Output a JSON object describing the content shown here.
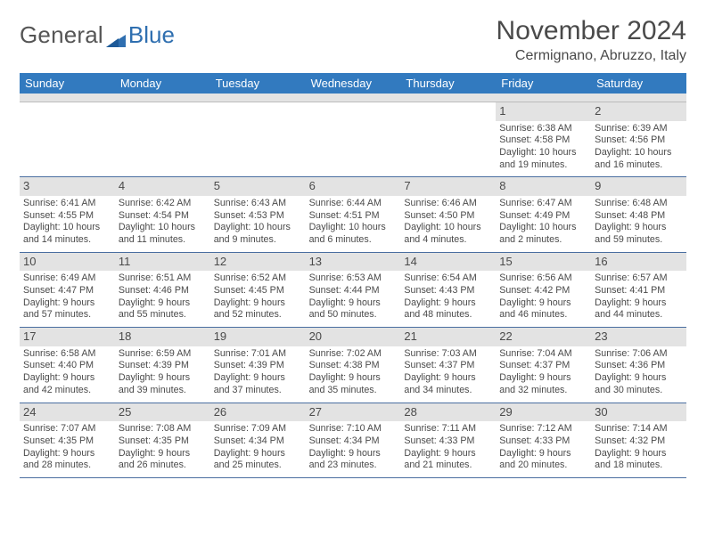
{
  "logo": {
    "general": "General",
    "blue": "Blue"
  },
  "title": "November 2024",
  "location": "Cermignano, Abruzzo, Italy",
  "colors": {
    "header_bg": "#327abf",
    "header_text": "#ffffff",
    "cell_border": "#4a6ea0",
    "daynum_bg": "#e3e3e3",
    "body_text": "#4a4a4a",
    "logo_blue": "#2f6fb0"
  },
  "daynames": [
    "Sunday",
    "Monday",
    "Tuesday",
    "Wednesday",
    "Thursday",
    "Friday",
    "Saturday"
  ],
  "weeks": [
    [
      null,
      null,
      null,
      null,
      null,
      {
        "n": "1",
        "sr": "6:38 AM",
        "ss": "4:58 PM",
        "dl": "10 hours and 19 minutes."
      },
      {
        "n": "2",
        "sr": "6:39 AM",
        "ss": "4:56 PM",
        "dl": "10 hours and 16 minutes."
      }
    ],
    [
      {
        "n": "3",
        "sr": "6:41 AM",
        "ss": "4:55 PM",
        "dl": "10 hours and 14 minutes."
      },
      {
        "n": "4",
        "sr": "6:42 AM",
        "ss": "4:54 PM",
        "dl": "10 hours and 11 minutes."
      },
      {
        "n": "5",
        "sr": "6:43 AM",
        "ss": "4:53 PM",
        "dl": "10 hours and 9 minutes."
      },
      {
        "n": "6",
        "sr": "6:44 AM",
        "ss": "4:51 PM",
        "dl": "10 hours and 6 minutes."
      },
      {
        "n": "7",
        "sr": "6:46 AM",
        "ss": "4:50 PM",
        "dl": "10 hours and 4 minutes."
      },
      {
        "n": "8",
        "sr": "6:47 AM",
        "ss": "4:49 PM",
        "dl": "10 hours and 2 minutes."
      },
      {
        "n": "9",
        "sr": "6:48 AM",
        "ss": "4:48 PM",
        "dl": "9 hours and 59 minutes."
      }
    ],
    [
      {
        "n": "10",
        "sr": "6:49 AM",
        "ss": "4:47 PM",
        "dl": "9 hours and 57 minutes."
      },
      {
        "n": "11",
        "sr": "6:51 AM",
        "ss": "4:46 PM",
        "dl": "9 hours and 55 minutes."
      },
      {
        "n": "12",
        "sr": "6:52 AM",
        "ss": "4:45 PM",
        "dl": "9 hours and 52 minutes."
      },
      {
        "n": "13",
        "sr": "6:53 AM",
        "ss": "4:44 PM",
        "dl": "9 hours and 50 minutes."
      },
      {
        "n": "14",
        "sr": "6:54 AM",
        "ss": "4:43 PM",
        "dl": "9 hours and 48 minutes."
      },
      {
        "n": "15",
        "sr": "6:56 AM",
        "ss": "4:42 PM",
        "dl": "9 hours and 46 minutes."
      },
      {
        "n": "16",
        "sr": "6:57 AM",
        "ss": "4:41 PM",
        "dl": "9 hours and 44 minutes."
      }
    ],
    [
      {
        "n": "17",
        "sr": "6:58 AM",
        "ss": "4:40 PM",
        "dl": "9 hours and 42 minutes."
      },
      {
        "n": "18",
        "sr": "6:59 AM",
        "ss": "4:39 PM",
        "dl": "9 hours and 39 minutes."
      },
      {
        "n": "19",
        "sr": "7:01 AM",
        "ss": "4:39 PM",
        "dl": "9 hours and 37 minutes."
      },
      {
        "n": "20",
        "sr": "7:02 AM",
        "ss": "4:38 PM",
        "dl": "9 hours and 35 minutes."
      },
      {
        "n": "21",
        "sr": "7:03 AM",
        "ss": "4:37 PM",
        "dl": "9 hours and 34 minutes."
      },
      {
        "n": "22",
        "sr": "7:04 AM",
        "ss": "4:37 PM",
        "dl": "9 hours and 32 minutes."
      },
      {
        "n": "23",
        "sr": "7:06 AM",
        "ss": "4:36 PM",
        "dl": "9 hours and 30 minutes."
      }
    ],
    [
      {
        "n": "24",
        "sr": "7:07 AM",
        "ss": "4:35 PM",
        "dl": "9 hours and 28 minutes."
      },
      {
        "n": "25",
        "sr": "7:08 AM",
        "ss": "4:35 PM",
        "dl": "9 hours and 26 minutes."
      },
      {
        "n": "26",
        "sr": "7:09 AM",
        "ss": "4:34 PM",
        "dl": "9 hours and 25 minutes."
      },
      {
        "n": "27",
        "sr": "7:10 AM",
        "ss": "4:34 PM",
        "dl": "9 hours and 23 minutes."
      },
      {
        "n": "28",
        "sr": "7:11 AM",
        "ss": "4:33 PM",
        "dl": "9 hours and 21 minutes."
      },
      {
        "n": "29",
        "sr": "7:12 AM",
        "ss": "4:33 PM",
        "dl": "9 hours and 20 minutes."
      },
      {
        "n": "30",
        "sr": "7:14 AM",
        "ss": "4:32 PM",
        "dl": "9 hours and 18 minutes."
      }
    ]
  ],
  "labels": {
    "sunrise": "Sunrise:",
    "sunset": "Sunset:",
    "daylight": "Daylight:"
  }
}
